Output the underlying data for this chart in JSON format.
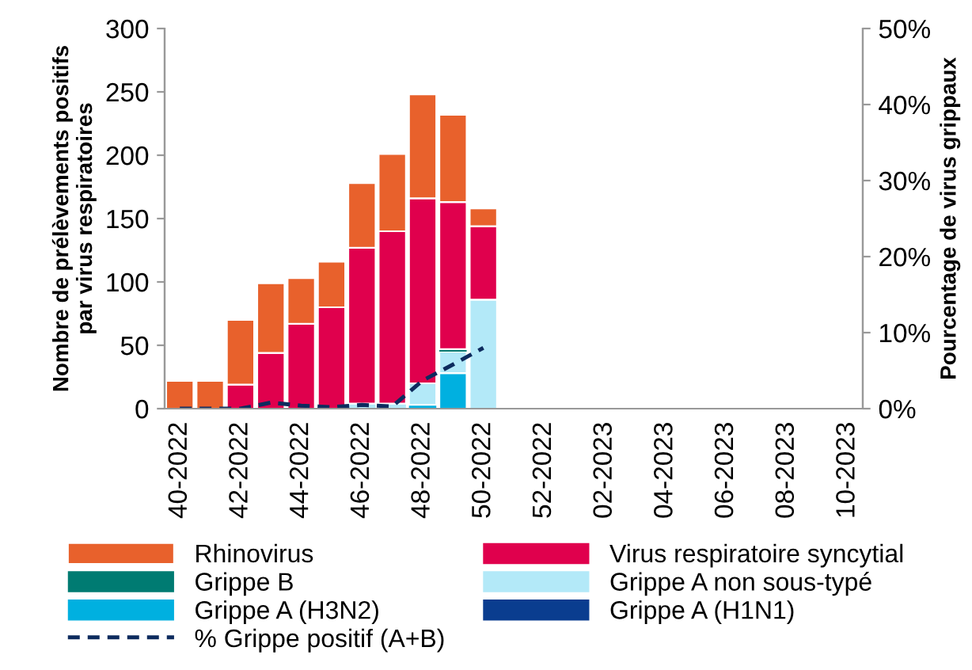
{
  "chart_data": {
    "type": "bar",
    "stacked": true,
    "categories": [
      "40-2022",
      null,
      "42-2022",
      null,
      "44-2022",
      null,
      "46-2022",
      null,
      "48-2022",
      null,
      "50-2022",
      null,
      "52-2022",
      null,
      "02-2023",
      null,
      "04-2023",
      null,
      "06-2023",
      null,
      "08-2023",
      null,
      "10-2023"
    ],
    "ylabel": "Nombre de prélèvements positifs\npar virus respiratoires",
    "y2label": "Pourcentage de virus grippaux",
    "ylim": [
      0,
      300
    ],
    "yticks": [
      0,
      50,
      100,
      150,
      200,
      250,
      300
    ],
    "y2lim": [
      0,
      50
    ],
    "y2ticks": [
      {
        "value": 0,
        "label": "0%"
      },
      {
        "value": 10,
        "label": "10%"
      },
      {
        "value": 20,
        "label": "20%"
      },
      {
        "value": 30,
        "label": "30%"
      },
      {
        "value": 40,
        "label": "40%"
      },
      {
        "value": 50,
        "label": "50%"
      }
    ],
    "grid": false,
    "legend": "bottom",
    "series": [
      {
        "name": "Grippe A (H1N1)",
        "color": "#0a3d8f",
        "values": [
          0,
          0,
          0,
          0,
          0,
          0,
          0,
          0,
          0,
          0,
          0,
          null,
          null,
          null,
          null,
          null,
          null,
          null,
          null,
          null,
          null,
          null,
          null
        ]
      },
      {
        "name": "Grippe A (H3N2)",
        "color": "#00b0e0",
        "values": [
          0,
          0,
          0,
          0,
          0,
          0,
          0,
          0,
          3,
          28,
          0,
          null,
          null,
          null,
          null,
          null,
          null,
          null,
          null,
          null,
          null,
          null,
          null
        ]
      },
      {
        "name": "Grippe A non sous-typé",
        "color": "#b3e9f8",
        "values": [
          0,
          0,
          0,
          0,
          0,
          0,
          4,
          4,
          17,
          17,
          86,
          null,
          null,
          null,
          null,
          null,
          null,
          null,
          null,
          null,
          null,
          null,
          null
        ]
      },
      {
        "name": "Grippe B",
        "color": "#007b72",
        "values": [
          0,
          0,
          0,
          0,
          0,
          0,
          0,
          0,
          0,
          2,
          0,
          null,
          null,
          null,
          null,
          null,
          null,
          null,
          null,
          null,
          null,
          null,
          null
        ]
      },
      {
        "name": "Virus respiratoire syncytial",
        "color": "#e0004d",
        "values": [
          0,
          0,
          19,
          44,
          67,
          80,
          123,
          136,
          146,
          116,
          58,
          null,
          null,
          null,
          null,
          null,
          null,
          null,
          null,
          null,
          null,
          null,
          null
        ]
      },
      {
        "name": "Rhinovirus",
        "color": "#e8612c",
        "values": [
          22,
          22,
          51,
          55,
          36,
          36,
          51,
          61,
          82,
          69,
          14,
          null,
          null,
          null,
          null,
          null,
          null,
          null,
          null,
          null,
          null,
          null,
          null
        ]
      },
      {
        "name": "% Grippe positif (A+B)",
        "type": "line",
        "axis": "y2",
        "color": "#0d2b5e",
        "line_style": "dashed",
        "values": [
          0,
          0,
          0,
          0.8,
          0.4,
          0.2,
          0.5,
          0.3,
          3.7,
          5.8,
          8,
          null,
          null,
          null,
          null,
          null,
          null,
          null,
          null,
          null,
          null,
          null,
          null
        ]
      }
    ]
  }
}
